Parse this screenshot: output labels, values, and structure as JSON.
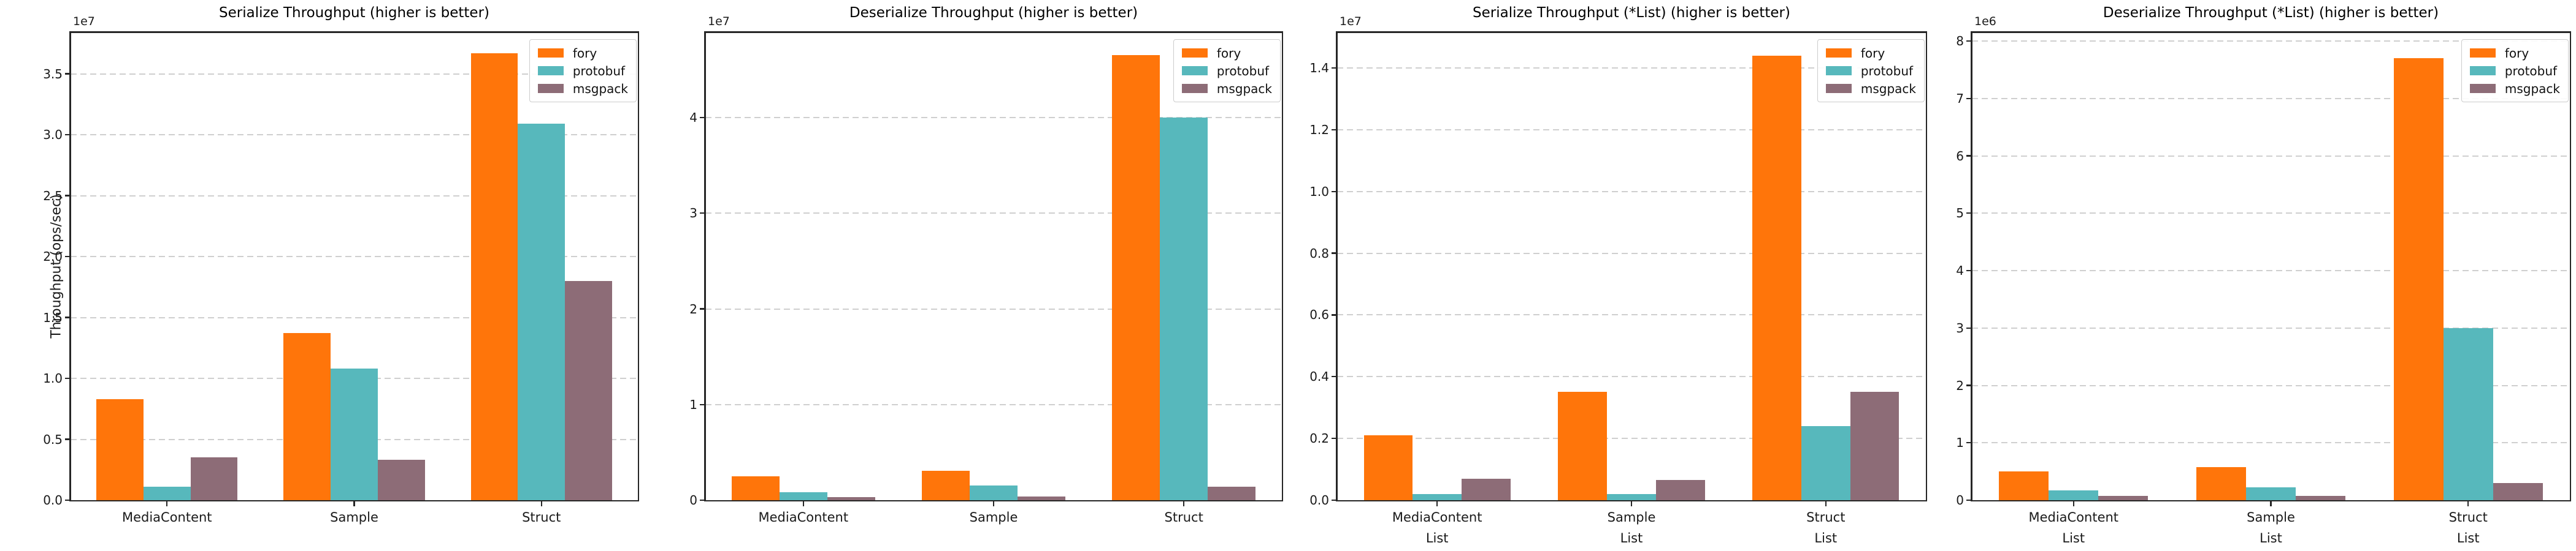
{
  "figure": {
    "background": "#ffffff",
    "text_color": "#1a1a1a",
    "grid_color": "#cfcfcf",
    "spine_color": "#262626",
    "legend_labels": [
      "fory",
      "protobuf",
      "msgpack"
    ],
    "series_colors": {
      "fory": "#ff750a",
      "protobuf": "#57b8bc",
      "msgpack": "#8d6c77"
    }
  },
  "chart_data": [
    {
      "type": "bar",
      "title": "Serialize Throughput (higher is better)",
      "ylabel": "Throughput (ops/sec)",
      "offset_label": "1e7",
      "unit": 10000000,
      "ymax": 38400000,
      "ytick_values": [
        0,
        5000000,
        10000000,
        15000000,
        20000000,
        25000000,
        30000000,
        35000000
      ],
      "ytick_labels": [
        "0.0",
        "0.5",
        "1.0",
        "1.5",
        "2.0",
        "2.5",
        "3.0",
        "3.5"
      ],
      "categories": [
        "MediaContent",
        "Sample",
        "Struct"
      ],
      "series": [
        {
          "name": "fory",
          "values": [
            8300000,
            13700000,
            36700000
          ]
        },
        {
          "name": "protobuf",
          "values": [
            1100000,
            10800000,
            30900000
          ]
        },
        {
          "name": "msgpack",
          "values": [
            3500000,
            3300000,
            18000000
          ]
        }
      ],
      "legend_position": "upper right",
      "grid": "horizontal-dashed"
    },
    {
      "type": "bar",
      "title": "Deserialize Throughput (higher is better)",
      "ylabel": "",
      "offset_label": "1e7",
      "unit": 10000000,
      "ymax": 48900000,
      "ytick_values": [
        0,
        10000000,
        20000000,
        30000000,
        40000000
      ],
      "ytick_labels": [
        "0",
        "1",
        "2",
        "3",
        "4"
      ],
      "categories": [
        "MediaContent",
        "Sample",
        "Struct"
      ],
      "series": [
        {
          "name": "fory",
          "values": [
            2500000,
            3100000,
            46500000
          ]
        },
        {
          "name": "protobuf",
          "values": [
            830000,
            1550000,
            40000000
          ]
        },
        {
          "name": "msgpack",
          "values": [
            320000,
            400000,
            1400000
          ]
        }
      ],
      "legend_position": "upper right",
      "grid": "horizontal-dashed"
    },
    {
      "type": "bar",
      "title": "Serialize Throughput (*List) (higher is better)",
      "ylabel": "",
      "offset_label": "1e7",
      "unit": 10000000,
      "ymax": 15150000,
      "ytick_values": [
        0,
        2000000,
        4000000,
        6000000,
        8000000,
        10000000,
        12000000,
        14000000
      ],
      "ytick_labels": [
        "0.0",
        "0.2",
        "0.4",
        "0.6",
        "0.8",
        "1.0",
        "1.2",
        "1.4"
      ],
      "categories": [
        "MediaContent\nList",
        "Sample\nList",
        "Struct\nList"
      ],
      "series": [
        {
          "name": "fory",
          "values": [
            2100000,
            3500000,
            14400000
          ]
        },
        {
          "name": "protobuf",
          "values": [
            200000,
            200000,
            2400000
          ]
        },
        {
          "name": "msgpack",
          "values": [
            700000,
            650000,
            3500000
          ]
        }
      ],
      "legend_position": "upper right",
      "grid": "horizontal-dashed"
    },
    {
      "type": "bar",
      "title": "Deserialize Throughput (*List) (higher is better)",
      "ylabel": "",
      "offset_label": "1e6",
      "unit": 1000000,
      "ymax": 8150000,
      "ytick_values": [
        0,
        1000000,
        2000000,
        3000000,
        4000000,
        5000000,
        6000000,
        7000000,
        8000000
      ],
      "ytick_labels": [
        "0",
        "1",
        "2",
        "3",
        "4",
        "5",
        "6",
        "7",
        "8"
      ],
      "categories": [
        "MediaContent\nList",
        "Sample\nList",
        "Struct\nList"
      ],
      "series": [
        {
          "name": "fory",
          "values": [
            500000,
            580000,
            7700000
          ]
        },
        {
          "name": "protobuf",
          "values": [
            170000,
            220000,
            3000000
          ]
        },
        {
          "name": "msgpack",
          "values": [
            80000,
            80000,
            300000
          ]
        }
      ],
      "legend_position": "upper right",
      "grid": "horizontal-dashed"
    }
  ]
}
